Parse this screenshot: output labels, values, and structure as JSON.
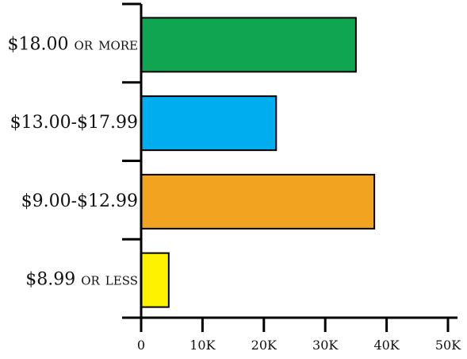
{
  "chart_data": {
    "type": "bar",
    "orientation": "horizontal",
    "categories": [
      "$18.00 or more",
      "$13.00-$17.99",
      "$9.00-$12.99",
      "$8.99 or less"
    ],
    "values": [
      35000,
      22000,
      38000,
      4500
    ],
    "colors": [
      "#10A550",
      "#00AEEF",
      "#F2A421",
      "#FFF200"
    ],
    "bar_outline": "#000000",
    "xlim": [
      0,
      50000
    ],
    "xticks": [
      0,
      10000,
      20000,
      30000,
      40000,
      50000
    ],
    "xtick_labels": [
      "0",
      "10K",
      "20K",
      "30K",
      "40K",
      "50K"
    ],
    "title": "",
    "xlabel": "",
    "ylabel": "",
    "grid": false,
    "legend": false
  }
}
